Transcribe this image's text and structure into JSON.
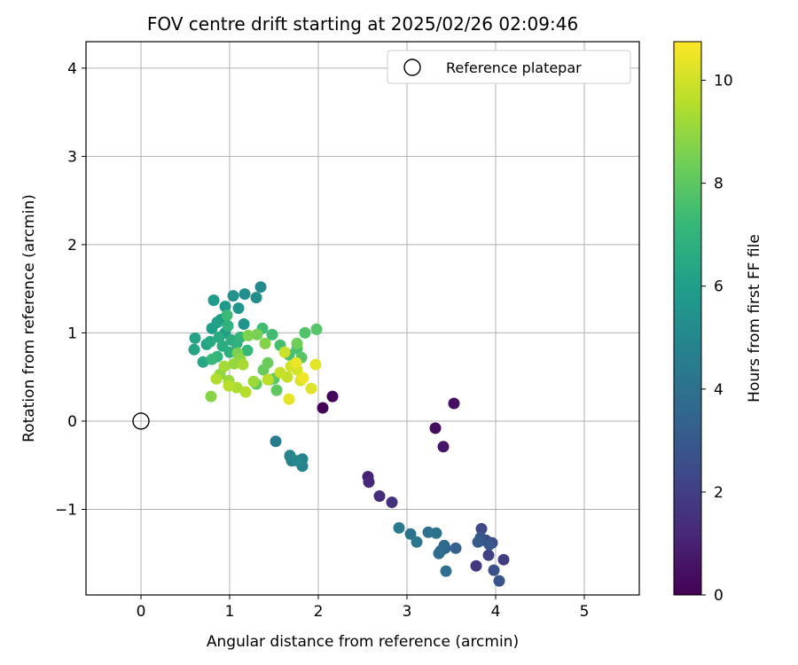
{
  "chart_data": {
    "type": "scatter",
    "title": "FOV centre drift starting at 2025/02/26 02:09:46",
    "xlabel": "Angular distance from reference (arcmin)",
    "ylabel": "Rotation from reference (arcmin)",
    "xlim": [
      -0.62,
      5.62
    ],
    "ylim": [
      -1.97,
      4.3
    ],
    "xticks": [
      0,
      1,
      2,
      3,
      4,
      5
    ],
    "yticks": [
      -1,
      0,
      1,
      2,
      3,
      4
    ],
    "grid": true,
    "legend": {
      "placement": "top-right",
      "entries": [
        "Reference platepar"
      ]
    },
    "reference_point": {
      "x": 0,
      "y": 0
    },
    "colorbar": {
      "label": "Hours from first FF file",
      "colormap": "viridis",
      "range": [
        0,
        10.75
      ],
      "ticks": [
        0,
        2,
        4,
        6,
        8,
        10
      ]
    },
    "colormap_stops": [
      "#440154",
      "#482878",
      "#3e4a89",
      "#31688e",
      "#26828e",
      "#1f9e89",
      "#35b779",
      "#6ece58",
      "#b5de2b",
      "#fde725"
    ],
    "points": [
      [
        2.05,
        0.15,
        0.05
      ],
      [
        2.16,
        0.28,
        0.15
      ],
      [
        3.32,
        -0.08,
        0.3
      ],
      [
        3.53,
        0.2,
        0.45
      ],
      [
        3.41,
        -0.29,
        0.6
      ],
      [
        2.56,
        -0.63,
        1.0
      ],
      [
        2.57,
        -0.69,
        1.2
      ],
      [
        2.69,
        -0.85,
        1.4
      ],
      [
        2.83,
        -0.92,
        1.55
      ],
      [
        3.78,
        -1.64,
        1.75
      ],
      [
        4.09,
        -1.57,
        1.9
      ],
      [
        3.92,
        -1.52,
        2.05
      ],
      [
        3.85,
        -1.35,
        2.2
      ],
      [
        3.84,
        -1.22,
        2.35
      ],
      [
        3.89,
        -1.35,
        2.45
      ],
      [
        3.96,
        -1.38,
        2.55
      ],
      [
        3.98,
        -1.69,
        2.65
      ],
      [
        4.04,
        -1.81,
        2.75
      ],
      [
        3.83,
        -1.32,
        2.85
      ],
      [
        3.93,
        -1.4,
        2.95
      ],
      [
        3.8,
        -1.37,
        3.1
      ],
      [
        3.55,
        -1.44,
        3.3
      ],
      [
        3.43,
        -1.44,
        3.45
      ],
      [
        3.38,
        -1.47,
        3.55
      ],
      [
        3.42,
        -1.41,
        3.65
      ],
      [
        3.36,
        -1.5,
        3.75
      ],
      [
        3.44,
        -1.7,
        3.85
      ],
      [
        3.24,
        -1.26,
        3.95
      ],
      [
        3.33,
        -1.27,
        4.05
      ],
      [
        3.04,
        -1.28,
        4.15
      ],
      [
        3.11,
        -1.37,
        4.25
      ],
      [
        2.91,
        -1.21,
        4.35
      ],
      [
        1.52,
        -0.23,
        4.45
      ],
      [
        1.68,
        -0.39,
        4.55
      ],
      [
        1.7,
        -0.45,
        4.65
      ],
      [
        1.82,
        -0.43,
        4.75
      ],
      [
        1.82,
        -0.51,
        4.85
      ],
      [
        1.68,
        -0.4,
        4.95
      ],
      [
        1.76,
        -0.45,
        5.05
      ],
      [
        1.35,
        1.52,
        5.15
      ],
      [
        1.3,
        1.4,
        5.25
      ],
      [
        1.17,
        1.44,
        5.35
      ],
      [
        1.04,
        1.42,
        5.45
      ],
      [
        1.16,
        1.1,
        5.55
      ],
      [
        1.1,
        1.28,
        5.65
      ],
      [
        0.95,
        1.3,
        5.72
      ],
      [
        0.82,
        1.37,
        5.8
      ],
      [
        0.9,
        1.15,
        5.88
      ],
      [
        0.95,
        1.0,
        5.95
      ],
      [
        0.8,
        1.05,
        6.02
      ],
      [
        0.86,
        1.12,
        6.1
      ],
      [
        0.74,
        0.87,
        6.18
      ],
      [
        0.61,
        0.94,
        6.25
      ],
      [
        0.6,
        0.81,
        6.32
      ],
      [
        0.7,
        0.67,
        6.4
      ],
      [
        0.78,
        0.9,
        6.48
      ],
      [
        0.88,
        0.95,
        6.55
      ],
      [
        0.92,
        0.85,
        6.62
      ],
      [
        1.02,
        0.92,
        6.7
      ],
      [
        1.0,
        0.78,
        6.78
      ],
      [
        1.08,
        0.88,
        6.85
      ],
      [
        0.98,
        1.08,
        6.92
      ],
      [
        0.86,
        0.73,
        7.0
      ],
      [
        1.12,
        0.95,
        7.08
      ],
      [
        1.2,
        0.8,
        7.15
      ],
      [
        0.8,
        0.7,
        7.22
      ],
      [
        0.97,
        1.2,
        7.3
      ],
      [
        1.37,
        1.05,
        7.37
      ],
      [
        1.48,
        0.98,
        7.45
      ],
      [
        1.57,
        0.86,
        7.52
      ],
      [
        1.67,
        0.75,
        7.6
      ],
      [
        1.76,
        0.82,
        7.67
      ],
      [
        1.85,
        1.0,
        7.74
      ],
      [
        1.98,
        1.04,
        7.82
      ],
      [
        1.81,
        0.72,
        7.9
      ],
      [
        1.5,
        0.48,
        7.97
      ],
      [
        1.53,
        0.35,
        8.05
      ],
      [
        1.3,
        0.42,
        8.12
      ],
      [
        1.38,
        0.58,
        8.2
      ],
      [
        1.43,
        0.66,
        8.27
      ],
      [
        1.76,
        0.88,
        8.35
      ],
      [
        1.45,
        0.47,
        8.42
      ],
      [
        1.31,
        0.98,
        8.5
      ],
      [
        1.09,
        0.77,
        8.57
      ],
      [
        1.21,
        0.97,
        8.65
      ],
      [
        1.4,
        0.88,
        8.72
      ],
      [
        0.79,
        0.28,
        8.8
      ],
      [
        1.12,
        0.7,
        8.87
      ],
      [
        0.89,
        0.53,
        8.95
      ],
      [
        1.05,
        0.65,
        9.02
      ],
      [
        0.99,
        0.46,
        9.1
      ],
      [
        1.27,
        0.45,
        9.17
      ],
      [
        0.94,
        0.62,
        9.25
      ],
      [
        1.15,
        0.64,
        9.32
      ],
      [
        1.08,
        0.38,
        9.4
      ],
      [
        0.85,
        0.48,
        9.47
      ],
      [
        1.18,
        0.33,
        9.55
      ],
      [
        0.99,
        0.4,
        9.62
      ],
      [
        1.43,
        0.47,
        9.7
      ],
      [
        1.65,
        0.5,
        9.77
      ],
      [
        1.57,
        0.55,
        9.85
      ],
      [
        1.62,
        0.78,
        9.92
      ],
      [
        1.69,
        0.62,
        10.0
      ],
      [
        1.76,
        0.58,
        10.07
      ],
      [
        1.8,
        0.46,
        10.15
      ],
      [
        1.92,
        0.37,
        10.22
      ],
      [
        1.97,
        0.64,
        10.3
      ],
      [
        1.67,
        0.25,
        10.37
      ],
      [
        1.75,
        0.66,
        10.45
      ],
      [
        1.83,
        0.49,
        10.52
      ]
    ]
  }
}
